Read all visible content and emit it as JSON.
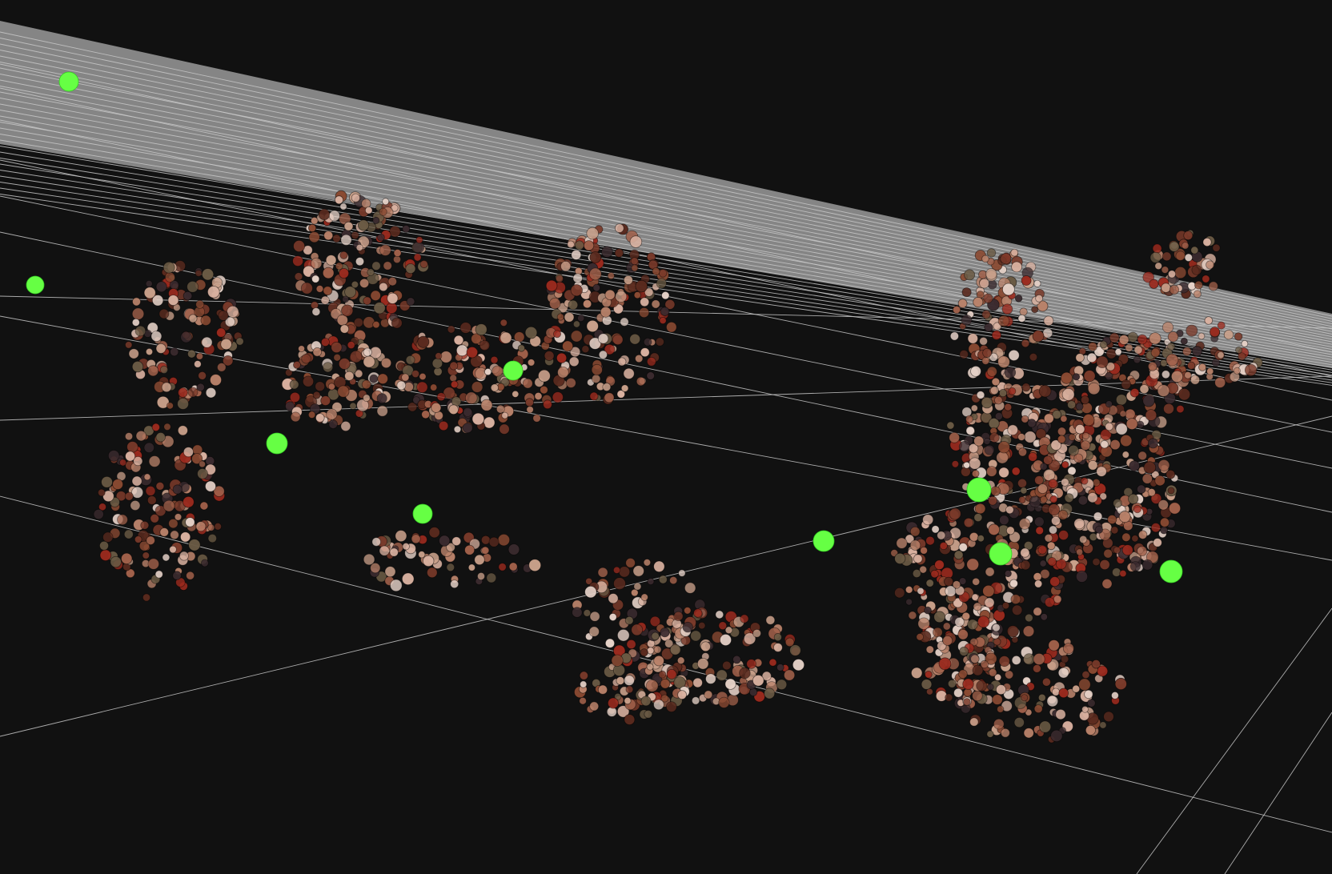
{
  "viewer": {
    "background_color": "#111111",
    "grid_color": "#c8c8c8",
    "marker_color": "#66ff44",
    "marker_count": 10,
    "cluster_palette": [
      "#b9826a",
      "#8a4a32",
      "#5a2a1e",
      "#d9b1a0",
      "#7a3a2a",
      "#a0604a",
      "#c9a08a",
      "#6a5a44",
      "#e6d2c8",
      "#3a2a2e",
      "#9a2a1e"
    ]
  }
}
